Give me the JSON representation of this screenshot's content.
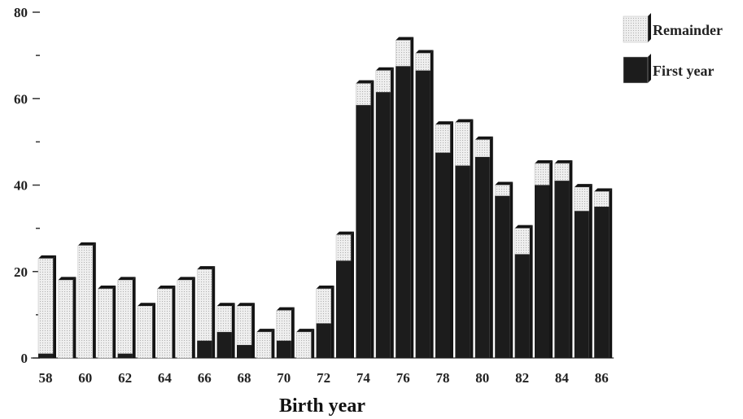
{
  "chart_data": {
    "type": "bar",
    "stacked": true,
    "xlabel": "Birth year",
    "ylabel": "",
    "ylim": [
      0,
      80
    ],
    "y_ticks_labeled": [
      0,
      20,
      40,
      60,
      80
    ],
    "y_ticks_minor": [
      10,
      30,
      50,
      70
    ],
    "x_tick_labels": [
      "58",
      "60",
      "62",
      "64",
      "66",
      "68",
      "70",
      "72",
      "74",
      "76",
      "78",
      "80",
      "82",
      "84",
      "86"
    ],
    "legend_position": "top-right",
    "categories": [
      "58",
      "59",
      "60",
      "61",
      "62",
      "63",
      "64",
      "65",
      "66",
      "67",
      "68",
      "69",
      "70",
      "71",
      "72",
      "73",
      "74",
      "75",
      "76",
      "77",
      "78",
      "79",
      "80",
      "81",
      "82",
      "83",
      "84",
      "85",
      "86"
    ],
    "series": [
      {
        "name": "First year",
        "color": "#1c1c1c",
        "values": [
          1,
          0,
          0,
          0,
          1,
          0,
          0,
          0,
          4,
          6,
          3,
          0,
          4,
          0,
          8,
          22.5,
          58.5,
          61.5,
          67.5,
          66.5,
          47.5,
          44.5,
          46.5,
          37.5,
          24,
          40,
          41,
          34,
          35
        ]
      },
      {
        "name": "Remainder",
        "color": "#e9e9e9",
        "values": [
          22,
          18,
          26,
          16,
          17,
          12,
          16,
          18,
          16.5,
          6,
          9,
          6,
          7,
          6,
          8,
          6,
          5,
          5,
          6,
          4,
          6.5,
          10,
          4,
          2.5,
          6,
          5,
          4,
          5.5,
          3.5
        ]
      }
    ]
  }
}
